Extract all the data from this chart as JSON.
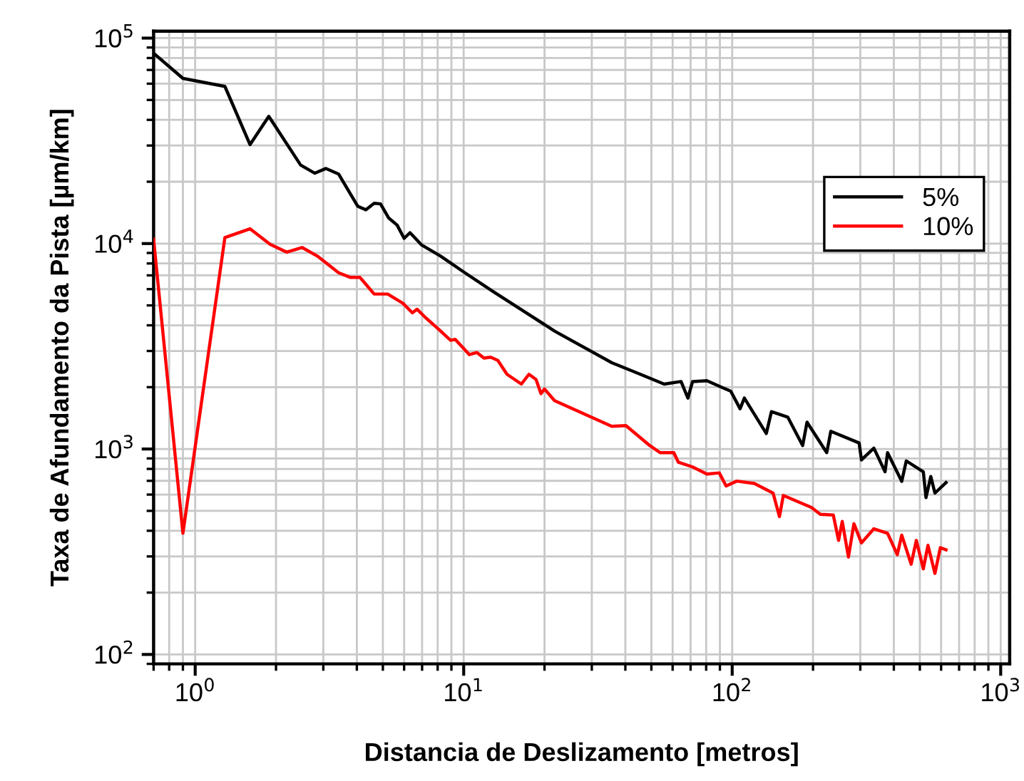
{
  "chart_data": {
    "type": "line",
    "xlabel": "Distancia de Deslizamento [metros]",
    "ylabel": "Taxa de Afundamento da Pista [µm/km]",
    "log": "xy",
    "grid": true,
    "legend": "top right",
    "marker": "none",
    "line_style": "solid",
    "xlim": [
      0.7,
      1080
    ],
    "ylim": [
      90,
      108000
    ],
    "xticks": [
      {
        "value": 1,
        "label": "10$^{0}$"
      },
      {
        "value": 10,
        "label": "10$^{1}$"
      },
      {
        "value": 100,
        "label": "10$^{2}$"
      },
      {
        "value": 1000,
        "label": "10$^{3}$"
      }
    ],
    "yticks": [
      {
        "value": 100,
        "label": "10$^{2}$"
      },
      {
        "value": 1000,
        "label": "10$^{3}$"
      },
      {
        "value": 10000,
        "label": "10$^{4}$"
      },
      {
        "value": 100000,
        "label": "10$^{5}$"
      }
    ],
    "series": [
      {
        "name": "5%",
        "color": "#000000",
        "x": [
          0.7,
          0.9,
          1.29,
          1.6,
          1.88,
          2.47,
          2.79,
          3.07,
          3.42,
          4.03,
          4.32,
          4.64,
          4.9,
          5.26,
          5.65,
          6.0,
          6.31,
          6.98,
          8.2,
          10.1,
          12.9,
          16.6,
          21.8,
          35.6,
          45.5,
          55.8,
          64.5,
          68.4,
          71.2,
          80.5,
          98.8,
          107,
          111,
          134,
          140,
          161,
          183,
          190,
          225,
          233,
          297,
          303,
          337,
          371,
          379,
          428,
          445,
          515,
          527,
          549,
          569,
          626
        ],
        "values": [
          84500,
          63700,
          58200,
          30300,
          41600,
          24100,
          22000,
          23200,
          21800,
          15200,
          14600,
          15700,
          15600,
          13300,
          12300,
          10600,
          11300,
          9830,
          8690,
          7210,
          5830,
          4720,
          3750,
          2630,
          2310,
          2070,
          2130,
          1770,
          2130,
          2150,
          1910,
          1570,
          1770,
          1190,
          1520,
          1430,
          1040,
          1350,
          960,
          1220,
          1070,
          885,
          1010,
          775,
          960,
          696,
          875,
          775,
          580,
          735,
          610,
          687
        ]
      },
      {
        "name": "10%",
        "color": "#ff0000",
        "x": [
          0.7,
          0.9,
          1.29,
          1.6,
          1.9,
          2.19,
          2.5,
          2.85,
          3.42,
          3.79,
          4.11,
          4.64,
          5.21,
          5.94,
          6.44,
          6.7,
          7.21,
          7.91,
          8.94,
          9.3,
          10.5,
          11.2,
          11.9,
          12.6,
          13.4,
          14.5,
          16.4,
          17.5,
          18.6,
          19.4,
          20.0,
          21.8,
          35.6,
          40.2,
          49.3,
          53.9,
          60.6,
          63.0,
          71.2,
          80.5,
          89.5,
          94.9,
          104,
          121,
          142,
          150,
          155,
          197,
          213,
          238,
          249,
          257,
          271,
          284,
          303,
          337,
          379,
          412,
          428,
          464,
          485,
          515,
          536,
          569,
          596,
          626
        ],
        "values": [
          10500,
          389,
          10700,
          11800,
          9930,
          9080,
          9570,
          8690,
          7210,
          6840,
          6840,
          5680,
          5680,
          5120,
          4600,
          4790,
          4360,
          3920,
          3380,
          3420,
          2880,
          2950,
          2770,
          2800,
          2700,
          2310,
          2070,
          2310,
          2180,
          1860,
          1960,
          1720,
          1290,
          1300,
          1040,
          960,
          960,
          863,
          818,
          755,
          765,
          661,
          698,
          679,
          610,
          469,
          594,
          520,
          481,
          477,
          359,
          444,
          298,
          433,
          349,
          409,
          389,
          306,
          381,
          275,
          359,
          261,
          340,
          248,
          331,
          323
        ]
      }
    ]
  }
}
